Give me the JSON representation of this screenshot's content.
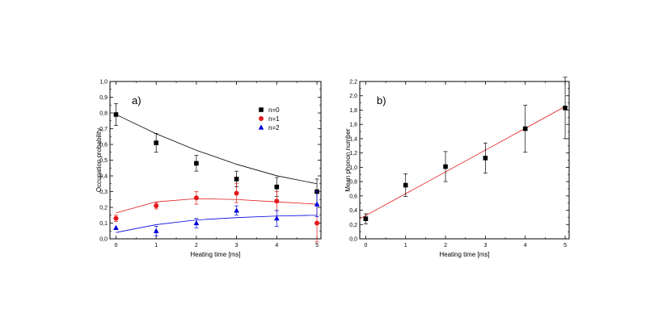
{
  "chart_data": [
    {
      "type": "scatter",
      "panel_label": "a)",
      "xlabel": "Heating time [ms]",
      "ylabel": "Occupation probability",
      "xlim": [
        -0.15,
        5.1
      ],
      "ylim": [
        0,
        1.0
      ],
      "xticks": [
        "0",
        "1",
        "2",
        "3",
        "4",
        "5"
      ],
      "yticks": [
        "0,0",
        "0,1",
        "0,2",
        "0,3",
        "0,4",
        "0,5",
        "0,6",
        "0,7",
        "0,8",
        "0,9",
        "1,0"
      ],
      "legend_position": "top-right",
      "series": [
        {
          "name": "n=0",
          "color": "#000000",
          "marker": "square",
          "points": [
            {
              "x": 0,
              "y": 0.79,
              "err": 0.07
            },
            {
              "x": 1,
              "y": 0.61,
              "err": 0.06
            },
            {
              "x": 2,
              "y": 0.48,
              "err": 0.05
            },
            {
              "x": 3,
              "y": 0.38,
              "err": 0.05
            },
            {
              "x": 4,
              "y": 0.33,
              "err": 0.06
            },
            {
              "x": 5,
              "y": 0.3,
              "err": 0.08
            }
          ],
          "fit": [
            0.79,
            0.668,
            0.563,
            0.474,
            0.401,
            0.35
          ]
        },
        {
          "name": "n=1",
          "color": "#e41a1c",
          "marker": "circle",
          "points": [
            {
              "x": 0,
              "y": 0.13,
              "err": 0.02
            },
            {
              "x": 1,
              "y": 0.21,
              "err": 0.02
            },
            {
              "x": 2,
              "y": 0.26,
              "err": 0.04
            },
            {
              "x": 3,
              "y": 0.29,
              "err": 0.06
            },
            {
              "x": 4,
              "y": 0.24,
              "err": 0.06
            },
            {
              "x": 5,
              "y": 0.1,
              "err": 0.12
            }
          ],
          "fit": [
            0.165,
            0.235,
            0.255,
            0.25,
            0.235,
            0.22
          ]
        },
        {
          "name": "n=2",
          "color": "#0000dd",
          "marker": "triangle",
          "points": [
            {
              "x": 0,
              "y": 0.07,
              "err": 0.0
            },
            {
              "x": 1,
              "y": 0.05,
              "err": 0.03
            },
            {
              "x": 2,
              "y": 0.1,
              "err": 0.03
            },
            {
              "x": 3,
              "y": 0.18,
              "err": 0.03
            },
            {
              "x": 4,
              "y": 0.13,
              "err": 0.05
            },
            {
              "x": 5,
              "y": 0.22,
              "err": 0.08
            }
          ],
          "fit": [
            0.04,
            0.09,
            0.12,
            0.135,
            0.145,
            0.15
          ]
        }
      ]
    },
    {
      "type": "scatter",
      "panel_label": "b)",
      "xlabel": "Heating time [ms]",
      "ylabel": "Mean phonon number",
      "xlim": [
        -0.15,
        5.1
      ],
      "ylim": [
        0,
        2.2
      ],
      "xticks": [
        "0",
        "1",
        "2",
        "3",
        "4",
        "5"
      ],
      "yticks": [
        "0,0",
        "0,2",
        "0,4",
        "0,6",
        "0,8",
        "1,0",
        "1,2",
        "1,4",
        "1,6",
        "1,8",
        "2,0",
        "2,2"
      ],
      "series": [
        {
          "name": "",
          "color": "#000000",
          "marker": "square",
          "points": [
            {
              "x": 0,
              "y": 0.28,
              "err": 0.07
            },
            {
              "x": 1,
              "y": 0.75,
              "err": 0.16
            },
            {
              "x": 2,
              "y": 1.01,
              "err": 0.21
            },
            {
              "x": 3,
              "y": 1.13,
              "err": 0.21
            },
            {
              "x": 4,
              "y": 1.54,
              "err": 0.33
            },
            {
              "x": 5,
              "y": 1.83,
              "err": 0.43
            }
          ],
          "fit_line": {
            "x": [
              -0.15,
              5.0
            ],
            "y": [
              0.28,
              1.85
            ],
            "color": "#e41a1c"
          }
        }
      ]
    }
  ]
}
